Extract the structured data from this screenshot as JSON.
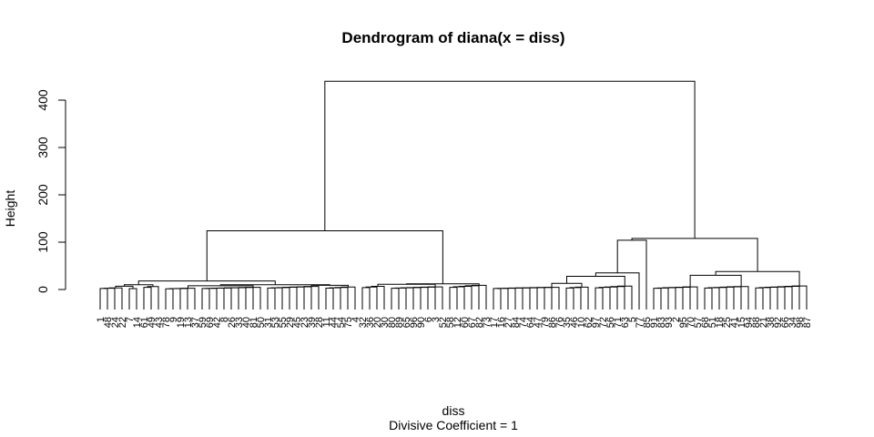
{
  "chart_data": {
    "type": "dendrogram",
    "title": "Dendrogram of  diana(x = diss)",
    "xlabel": "diss",
    "subtitle": "Divisive Coefficient =  1",
    "ylabel": "Height",
    "ylim": [
      0,
      450
    ],
    "yticks": [
      0,
      100,
      200,
      300,
      400
    ],
    "leaves": [
      "1",
      "48",
      "24",
      "22",
      "7",
      "14",
      "61",
      "49",
      "43",
      "78",
      "9",
      "19",
      "13",
      "37",
      "59",
      "69",
      "42",
      "8",
      "26",
      "33",
      "40",
      "81",
      "50",
      "31",
      "53",
      "55",
      "29",
      "45",
      "23",
      "39",
      "28",
      "11",
      "44",
      "54",
      "75",
      "4",
      "32",
      "36",
      "20",
      "30",
      "80",
      "89",
      "65",
      "96",
      "90",
      "6",
      "3",
      "52",
      "58",
      "12",
      "60",
      "67",
      "82",
      "73",
      "17",
      "16",
      "27",
      "84",
      "74",
      "64",
      "47",
      "79",
      "86",
      "76",
      "35",
      "46",
      "10",
      "62",
      "97",
      "72",
      "56",
      "71",
      "63",
      "5",
      "77",
      "85",
      "91",
      "83",
      "93",
      "2",
      "95",
      "70",
      "57",
      "68",
      "51",
      "18",
      "25",
      "41",
      "15",
      "94",
      "88",
      "21",
      "38",
      "92",
      "66",
      "34",
      "98",
      "87"
    ],
    "root_height": 440,
    "main_clusters": [
      {
        "label": "left",
        "height": 124,
        "leaf_range": [
          1,
          54
        ]
      },
      {
        "label": "right",
        "height": 108,
        "leaf_range": [
          55,
          98
        ]
      }
    ]
  }
}
